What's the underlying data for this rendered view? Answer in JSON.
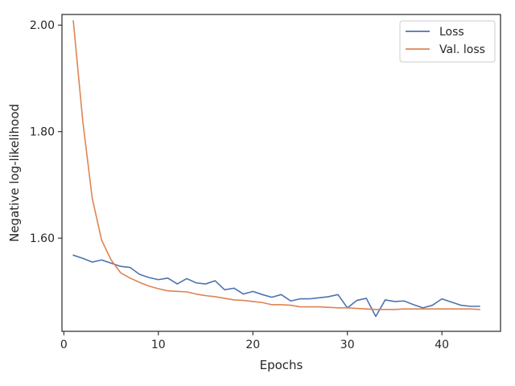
{
  "chart_data": {
    "type": "line",
    "title": "",
    "xlabel": "Epochs",
    "ylabel": "Negative log-likelihood",
    "xlim": [
      -0.2,
      46.2
    ],
    "ylim": [
      1.425,
      2.02
    ],
    "xticks": [
      0,
      10,
      20,
      30,
      40
    ],
    "xtick_labels": [
      "0",
      "10",
      "20",
      "30",
      "40"
    ],
    "yticks": [
      1.6,
      1.8,
      2.0
    ],
    "ytick_labels": [
      "1.60",
      "1.80",
      "2.00"
    ],
    "grid": false,
    "legend_position": "top-right",
    "x": [
      1,
      2,
      3,
      4,
      5,
      6,
      7,
      8,
      9,
      10,
      11,
      12,
      13,
      14,
      15,
      16,
      17,
      18,
      19,
      20,
      21,
      22,
      23,
      24,
      25,
      26,
      27,
      28,
      29,
      30,
      31,
      32,
      33,
      34,
      35,
      36,
      37,
      38,
      39,
      40,
      41,
      42,
      43,
      44
    ],
    "series": [
      {
        "name": "Loss",
        "color": "#4c72b0",
        "values": [
          1.568,
          1.562,
          1.555,
          1.559,
          1.553,
          1.547,
          1.545,
          1.532,
          1.526,
          1.522,
          1.525,
          1.514,
          1.524,
          1.516,
          1.514,
          1.52,
          1.503,
          1.506,
          1.495,
          1.5,
          1.494,
          1.489,
          1.494,
          1.482,
          1.486,
          1.486,
          1.488,
          1.49,
          1.494,
          1.469,
          1.483,
          1.487,
          1.453,
          1.484,
          1.481,
          1.482,
          1.475,
          1.469,
          1.474,
          1.486,
          1.48,
          1.474,
          1.472,
          1.472
        ]
      },
      {
        "name": "Val. loss",
        "color": "#dd8452",
        "values": [
          2.008,
          1.82,
          1.675,
          1.596,
          1.559,
          1.535,
          1.525,
          1.517,
          1.51,
          1.505,
          1.501,
          1.5,
          1.499,
          1.495,
          1.492,
          1.49,
          1.487,
          1.484,
          1.483,
          1.481,
          1.479,
          1.475,
          1.475,
          1.474,
          1.471,
          1.471,
          1.471,
          1.47,
          1.469,
          1.469,
          1.468,
          1.467,
          1.466,
          1.466,
          1.466,
          1.467,
          1.467,
          1.467,
          1.467,
          1.467,
          1.467,
          1.467,
          1.467,
          1.466
        ]
      }
    ]
  }
}
